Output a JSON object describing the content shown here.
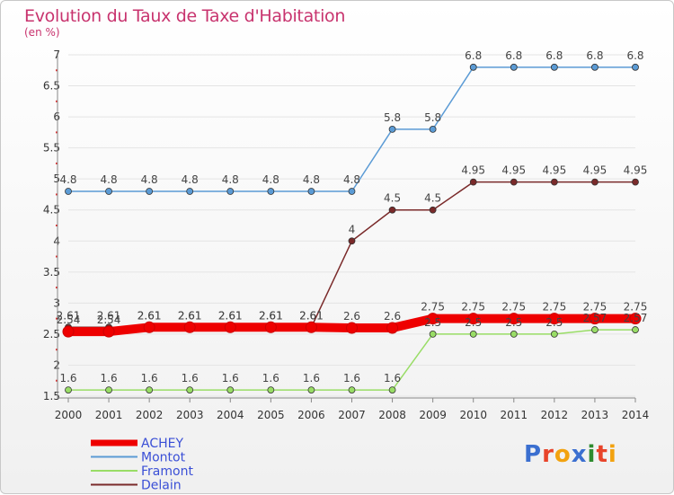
{
  "chart_data": {
    "type": "line",
    "title": "Evolution du Taux de Taxe d'Habitation",
    "ylabel": "(en %)",
    "xlabel": "",
    "ylim": [
      1.5,
      7
    ],
    "yticks": [
      "1.5",
      "2",
      "2.5",
      "3",
      "3.5",
      "4",
      "4.5",
      "5",
      "5.5",
      "6",
      "6.5",
      "7"
    ],
    "categories": [
      "2000",
      "2001",
      "2002",
      "2003",
      "2004",
      "2005",
      "2006",
      "2007",
      "2008",
      "2009",
      "2010",
      "2011",
      "2012",
      "2013",
      "2014"
    ],
    "legend_position": "bottom-left",
    "series": [
      {
        "name": "ACHEY",
        "color": "#ee0000",
        "values": [
          2.54,
          2.54,
          2.61,
          2.61,
          2.61,
          2.61,
          2.61,
          2.6,
          2.6,
          2.75,
          2.75,
          2.75,
          2.75,
          2.75,
          2.75
        ],
        "labels": [
          "2.54",
          "2.54",
          "2.61",
          "2.61",
          "2.61",
          "2.61",
          "2.61",
          "2.6",
          "2.6",
          "2.75",
          "2.75",
          "2.75",
          "2.75",
          "2.75",
          "2.75"
        ]
      },
      {
        "name": "Montot",
        "color": "#5b9bd5",
        "values": [
          4.8,
          4.8,
          4.8,
          4.8,
          4.8,
          4.8,
          4.8,
          4.8,
          5.8,
          5.8,
          6.8,
          6.8,
          6.8,
          6.8,
          6.8
        ],
        "labels": [
          "4.8",
          "4.8",
          "4.8",
          "4.8",
          "4.8",
          "4.8",
          "4.8",
          "4.8",
          "5.8",
          "5.8",
          "6.8",
          "6.8",
          "6.8",
          "6.8",
          "6.8"
        ]
      },
      {
        "name": "Framont",
        "color": "#99dd66",
        "values": [
          1.6,
          1.6,
          1.6,
          1.6,
          1.6,
          1.6,
          1.6,
          1.6,
          1.6,
          2.5,
          2.5,
          2.5,
          2.5,
          2.57,
          2.57
        ],
        "labels": [
          "1.6",
          "1.6",
          "1.6",
          "1.6",
          "1.6",
          "1.6",
          "1.6",
          "1.6",
          "1.6",
          "2.5",
          "2.5",
          "2.5",
          "2.5",
          "2.57",
          "2.57"
        ]
      },
      {
        "name": "Delain",
        "color": "#7a2a2a",
        "values": [
          2.61,
          2.61,
          2.61,
          2.61,
          2.61,
          2.61,
          2.61,
          4,
          4.5,
          4.5,
          4.95,
          4.95,
          4.95,
          4.95,
          4.95
        ],
        "labels": [
          "2.61",
          "2.61",
          "2.61",
          "2.61",
          "2.61",
          "2.61",
          "2.61",
          "4",
          "4.5",
          "4.5",
          "4.95",
          "4.95",
          "4.95",
          "4.95",
          "4.95"
        ]
      }
    ]
  },
  "logo_text": "Proxiti"
}
